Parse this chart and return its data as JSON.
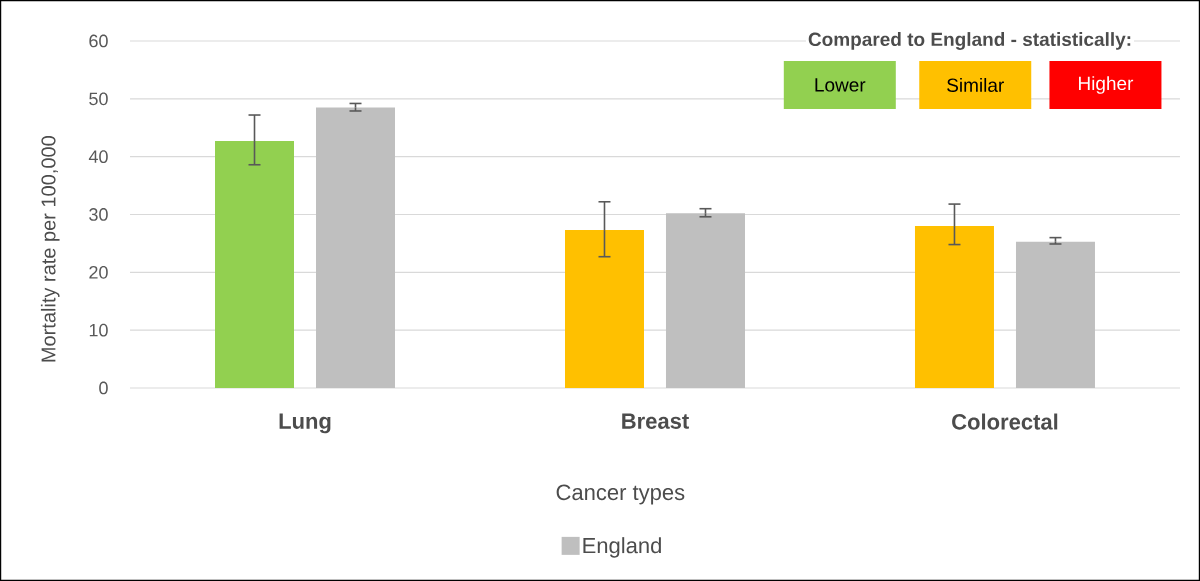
{
  "chart_data": {
    "type": "bar",
    "xlabel": "Cancer types",
    "ylabel": "Mortality rate per 100,000",
    "categories": [
      "Lung",
      "Breast",
      "Colorectal"
    ],
    "series": [
      {
        "colors": [
          "#92d050",
          "#ffc000",
          "#ffc000"
        ],
        "values": [
          42.7,
          27.3,
          28.0
        ],
        "errors": [
          [
            38.6,
            47.2
          ],
          [
            22.7,
            32.2
          ],
          [
            24.8,
            31.8
          ]
        ]
      },
      {
        "name": "England",
        "color": "#bfbfbf",
        "values": [
          48.5,
          30.2,
          25.3
        ],
        "errors": [
          [
            47.9,
            49.2
          ],
          [
            29.6,
            31.0
          ],
          [
            24.9,
            26.0
          ]
        ]
      }
    ],
    "ylim": [
      0,
      60
    ],
    "yticks": [
      0,
      10,
      20,
      30,
      40,
      50,
      60
    ],
    "grid": "y",
    "legend": "bottom",
    "annotations": [
      "Compared to England - statistically:",
      "Lower",
      "Similar",
      "Higher"
    ]
  }
}
